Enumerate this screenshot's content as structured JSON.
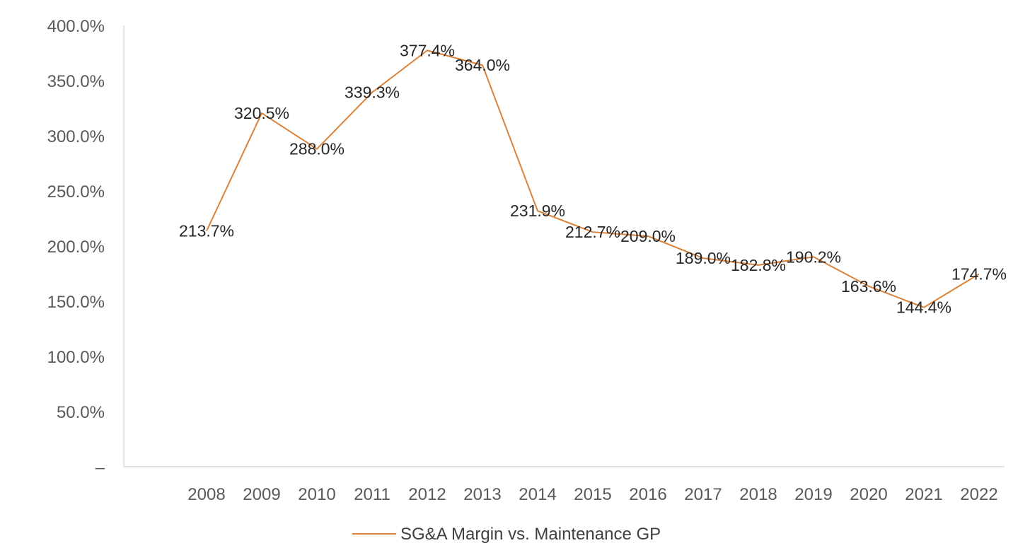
{
  "chart_data": {
    "type": "line",
    "title": "",
    "xlabel": "",
    "ylabel": "",
    "categories": [
      "2008",
      "2009",
      "2010",
      "2011",
      "2012",
      "2013",
      "2014",
      "2015",
      "2016",
      "2017",
      "2018",
      "2019",
      "2020",
      "2021",
      "2022"
    ],
    "series": [
      {
        "name": "SG&A Margin vs. Maintenance GP",
        "color": "#D9823B",
        "values": [
          213.7,
          320.5,
          288.0,
          339.3,
          377.4,
          364.0,
          231.9,
          212.7,
          209.0,
          189.0,
          182.8,
          190.2,
          163.6,
          144.4,
          174.7
        ],
        "labels": [
          "213.7%",
          "320.5%",
          "288.0%",
          "339.3%",
          "377.4%",
          "364.0%",
          "231.9%",
          "212.7%",
          "209.0%",
          "189.0%",
          "182.8%",
          "190.2%",
          "163.6%",
          "144.4%",
          "174.7%"
        ]
      }
    ],
    "ylim": [
      0,
      400
    ],
    "yticks": [
      0,
      50,
      100,
      150,
      200,
      250,
      300,
      350,
      400
    ],
    "ytick_labels": [
      "–",
      "50.0%",
      "100.0%",
      "150.0%",
      "200.0%",
      "250.0%",
      "300.0%",
      "350.0%",
      "400.0%"
    ],
    "grid": false,
    "legend": "bottom",
    "axis_color": "#D9D9D9"
  }
}
